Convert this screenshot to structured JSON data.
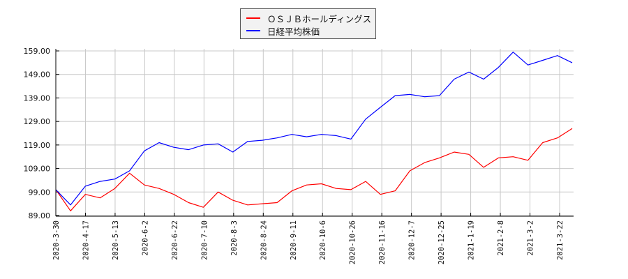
{
  "chart_data": {
    "type": "line",
    "title": "",
    "xlabel": "",
    "ylabel": "",
    "ylim": [
      89.0,
      159.0
    ],
    "y_ticks": [
      "159.00",
      "149.00",
      "139.00",
      "129.00",
      "119.00",
      "109.00",
      "99.00",
      "89.00"
    ],
    "x_tick_labels": [
      "2020-3-30",
      "2020-4-17",
      "2020-5-13",
      "2020-6-2",
      "2020-6-22",
      "2020-7-10",
      "2020-8-3",
      "2020-8-24",
      "2020-9-11",
      "2020-10-6",
      "2020-10-26",
      "2020-11-16",
      "2020-12-7",
      "2020-12-25",
      "2021-1-19",
      "2021-2-8",
      "2021-3-2",
      "2021-3-22"
    ],
    "grid": true,
    "legend_position": "top-center",
    "x": [
      "2020-3-30",
      "2020-4-8",
      "2020-4-17",
      "2020-4-30",
      "2020-5-13",
      "2020-5-22",
      "2020-6-2",
      "2020-6-12",
      "2020-6-22",
      "2020-7-1",
      "2020-7-10",
      "2020-7-22",
      "2020-8-3",
      "2020-8-13",
      "2020-8-24",
      "2020-9-2",
      "2020-9-11",
      "2020-9-24",
      "2020-10-6",
      "2020-10-16",
      "2020-10-26",
      "2020-11-5",
      "2020-11-16",
      "2020-11-26",
      "2020-12-7",
      "2020-12-16",
      "2020-12-25",
      "2021-1-8",
      "2021-1-19",
      "2021-1-29",
      "2021-2-8",
      "2021-2-19",
      "2021-3-2",
      "2021-3-11",
      "2021-3-22",
      "2021-3-26"
    ],
    "series": [
      {
        "name": "ＯＳＪＢホールディングス",
        "color": "#ff0000",
        "values": [
          100.0,
          91.0,
          98.0,
          96.5,
          100.5,
          107.0,
          102.0,
          100.5,
          98.0,
          94.5,
          92.5,
          99.0,
          95.5,
          93.5,
          94.0,
          94.5,
          99.5,
          102.0,
          102.5,
          100.5,
          100.0,
          103.5,
          98.0,
          99.5,
          108.0,
          111.5,
          113.5,
          116.0,
          115.0,
          109.5,
          113.5,
          114.0,
          112.5,
          120.0,
          122.0,
          126.0
        ]
      },
      {
        "name": "日経平均株価",
        "color": "#0000ff",
        "values": [
          100.0,
          93.5,
          101.5,
          103.5,
          104.5,
          108.0,
          116.5,
          120.0,
          118.0,
          117.0,
          119.0,
          119.5,
          116.0,
          120.5,
          121.0,
          122.0,
          123.5,
          122.5,
          123.5,
          123.0,
          121.5,
          130.0,
          135.0,
          140.0,
          140.5,
          139.5,
          140.0,
          147.0,
          150.0,
          147.0,
          152.0,
          158.5,
          153.0,
          155.0,
          157.0,
          154.0
        ]
      }
    ]
  },
  "legend": {
    "items": [
      {
        "label": "ＯＳＪＢホールディングス",
        "color": "#ff0000"
      },
      {
        "label": "日経平均株価",
        "color": "#0000ff"
      }
    ]
  }
}
